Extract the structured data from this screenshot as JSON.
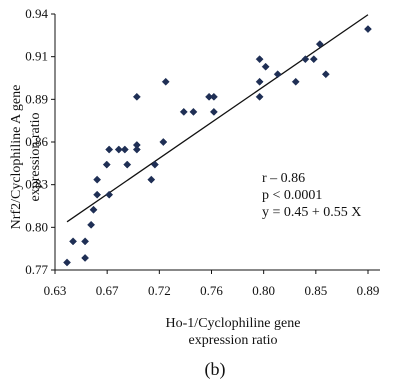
{
  "chart_data": {
    "type": "scatter",
    "x": [
      0.64,
      0.645,
      0.655,
      0.655,
      0.66,
      0.662,
      0.665,
      0.665,
      0.673,
      0.675,
      0.675,
      0.683,
      0.688,
      0.69,
      0.698,
      0.698,
      0.698,
      0.71,
      0.713,
      0.72,
      0.722,
      0.737,
      0.745,
      0.758,
      0.762,
      0.762,
      0.8,
      0.8,
      0.8,
      0.805,
      0.815,
      0.83,
      0.838,
      0.845,
      0.85,
      0.855,
      0.89
    ],
    "y": [
      0.775,
      0.789,
      0.789,
      0.778,
      0.8,
      0.81,
      0.82,
      0.83,
      0.84,
      0.82,
      0.85,
      0.85,
      0.85,
      0.84,
      0.853,
      0.85,
      0.885,
      0.83,
      0.84,
      0.855,
      0.895,
      0.875,
      0.875,
      0.885,
      0.885,
      0.875,
      0.885,
      0.895,
      0.91,
      0.905,
      0.9,
      0.895,
      0.91,
      0.91,
      0.92,
      0.9,
      0.93
    ],
    "xlim": [
      0.63,
      0.9
    ],
    "ylim": [
      0.77,
      0.94
    ],
    "x_ticks": [
      "0.63",
      "0.67",
      "0.72",
      "0.76",
      "0.80",
      "0.85",
      "0.89"
    ],
    "y_ticks": [
      "0.77",
      "0.80",
      "0.83",
      "0.86",
      "0.89",
      "0.91",
      "0.94"
    ],
    "xlabel": [
      "Ho-1/Cyclophiline gene",
      "expression ratio"
    ],
    "ylabel": [
      "Nrf2/Cyclophiline A gene",
      "expression ratio"
    ],
    "regression": {
      "intercept": 0.45,
      "slope": 0.55,
      "x_range": [
        0.64,
        0.89
      ]
    },
    "annotations": [
      "r – 0.86",
      "p < 0.0001",
      "y = 0.45 + 0.55 X"
    ],
    "marker_color": "#1f2f55",
    "grid": false
  },
  "panel_label": "(b)"
}
